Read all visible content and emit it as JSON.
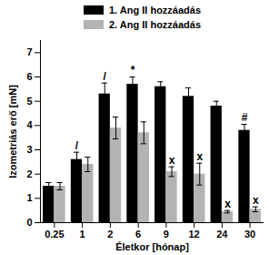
{
  "chart_data": {
    "type": "bar",
    "x_label": "Életkor [hónap]",
    "y_label": "Izometriás erő [mN]",
    "categories": [
      "0.25",
      "1",
      "2",
      "6",
      "9",
      "12",
      "24",
      "30"
    ],
    "series": [
      {
        "name": "1. Ang II hozzáadás",
        "color": "#000000",
        "values": [
          1.5,
          2.6,
          5.3,
          5.7,
          5.6,
          5.2,
          4.8,
          3.8
        ],
        "errors": [
          0.15,
          0.3,
          0.45,
          0.3,
          0.2,
          0.35,
          0.2,
          0.25
        ],
        "annotations": [
          null,
          "/",
          "/",
          "*",
          null,
          null,
          null,
          "#"
        ]
      },
      {
        "name": "2. Ang II hozzáadás",
        "color": "#b3b3b3",
        "values": [
          1.5,
          2.4,
          3.9,
          3.7,
          2.1,
          2.0,
          0.45,
          0.55
        ],
        "errors": [
          0.15,
          0.3,
          0.45,
          0.45,
          0.2,
          0.45,
          0.05,
          0.1
        ],
        "annotations": [
          null,
          null,
          null,
          null,
          "x",
          "x",
          "x",
          "x"
        ]
      }
    ],
    "ylim": [
      0,
      7.5
    ],
    "yticks": [
      0,
      1,
      2,
      3,
      4,
      5,
      6,
      7
    ],
    "legend": "top",
    "grid": false
  }
}
